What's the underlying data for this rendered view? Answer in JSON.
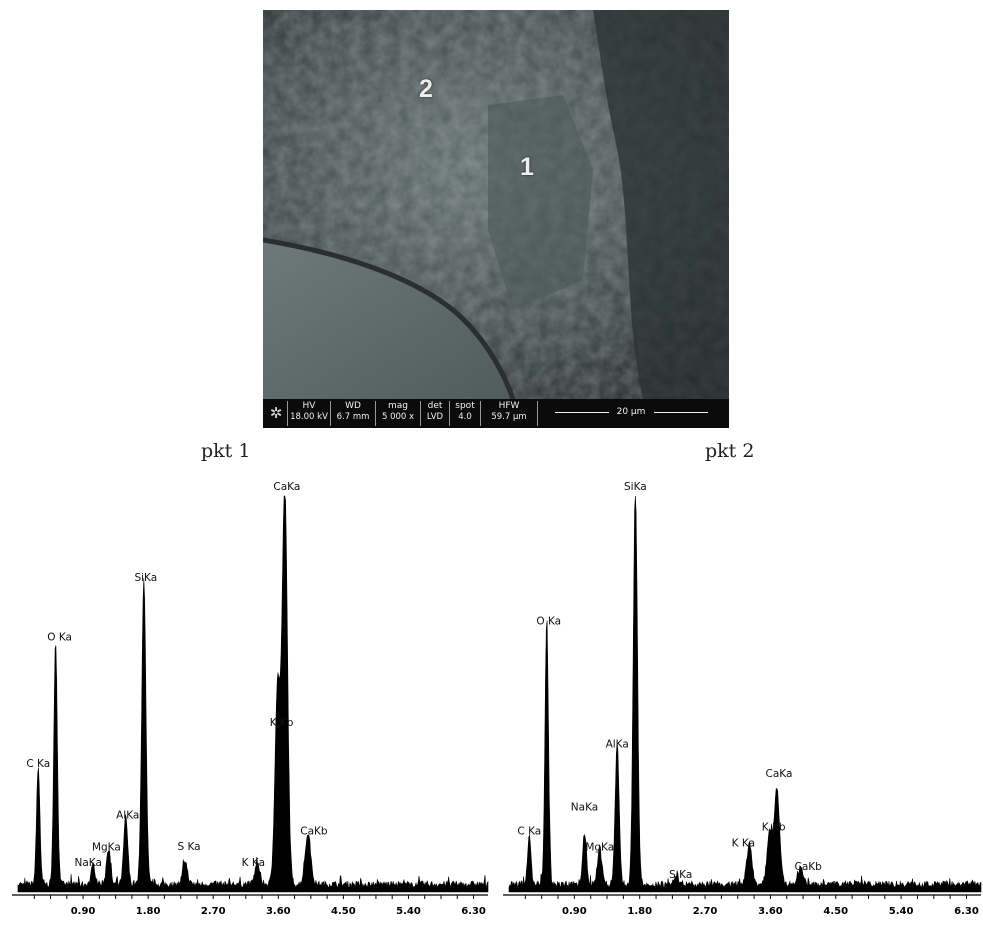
{
  "sem": {
    "point_labels": [
      "2",
      "1"
    ],
    "info_bar": [
      {
        "key": "HV",
        "value": "18.00 kV"
      },
      {
        "key": "WD",
        "value": "6.7 mm"
      },
      {
        "key": "mag",
        "value": "5 000 x"
      },
      {
        "key": "det",
        "value": "LVD"
      },
      {
        "key": "spot",
        "value": "4.0"
      },
      {
        "key": "HFW",
        "value": "59.7 µm"
      }
    ],
    "scale_bar": "20 µm"
  },
  "chart_data": [
    {
      "type": "line",
      "title": "pkt 1",
      "xlim": [
        0,
        6.5
      ],
      "ylim": [
        0,
        1
      ],
      "x_ticks": [
        "0.90",
        "1.80",
        "2.70",
        "3.60",
        "4.50",
        "5.40",
        "6.30"
      ],
      "x_tick_values": [
        0.9,
        1.8,
        2.7,
        3.6,
        4.5,
        5.4,
        6.3
      ],
      "peaks": [
        {
          "label": "C Ka",
          "x": 0.28,
          "y": 0.3
        },
        {
          "label": "O Ka",
          "x": 0.52,
          "y": 0.62
        },
        {
          "label": "NaKa",
          "x": 1.04,
          "y": 0.05
        },
        {
          "label": "MgKa",
          "x": 1.25,
          "y": 0.09
        },
        {
          "label": "AlKa",
          "x": 1.49,
          "y": 0.17
        },
        {
          "label": "SiKa",
          "x": 1.74,
          "y": 0.77
        },
        {
          "label": "S Ka",
          "x": 2.31,
          "y": 0.06
        },
        {
          "label": "K Ka",
          "x": 3.31,
          "y": 0.05
        },
        {
          "label": "K Kb",
          "x": 3.59,
          "y": 0.5
        },
        {
          "label": "CaKa",
          "x": 3.69,
          "y": 1.0
        },
        {
          "label": "CaKb",
          "x": 4.01,
          "y": 0.13
        }
      ]
    },
    {
      "type": "line",
      "title": "pkt 2",
      "xlim": [
        0,
        6.5
      ],
      "ylim": [
        0,
        1
      ],
      "x_ticks": [
        "0.90",
        "1.80",
        "2.70",
        "3.60",
        "4.50",
        "5.40",
        "6.30"
      ],
      "x_tick_values": [
        0.9,
        1.8,
        2.7,
        3.6,
        4.5,
        5.4,
        6.3
      ],
      "peaks": [
        {
          "label": "C Ka",
          "x": 0.28,
          "y": 0.13
        },
        {
          "label": "O Ka",
          "x": 0.52,
          "y": 0.66
        },
        {
          "label": "NaKa",
          "x": 1.04,
          "y": 0.13
        },
        {
          "label": "MgKa",
          "x": 1.25,
          "y": 0.09
        },
        {
          "label": "AlKa",
          "x": 1.49,
          "y": 0.35
        },
        {
          "label": "SiKa",
          "x": 1.74,
          "y": 1.0
        },
        {
          "label": "S Ka",
          "x": 2.31,
          "y": 0.02
        },
        {
          "label": "K Ka",
          "x": 3.31,
          "y": 0.1
        },
        {
          "label": "K Kb",
          "x": 3.59,
          "y": 0.13
        },
        {
          "label": "CaKa",
          "x": 3.69,
          "y": 0.24
        },
        {
          "label": "CaKb",
          "x": 4.01,
          "y": 0.04
        }
      ]
    }
  ]
}
